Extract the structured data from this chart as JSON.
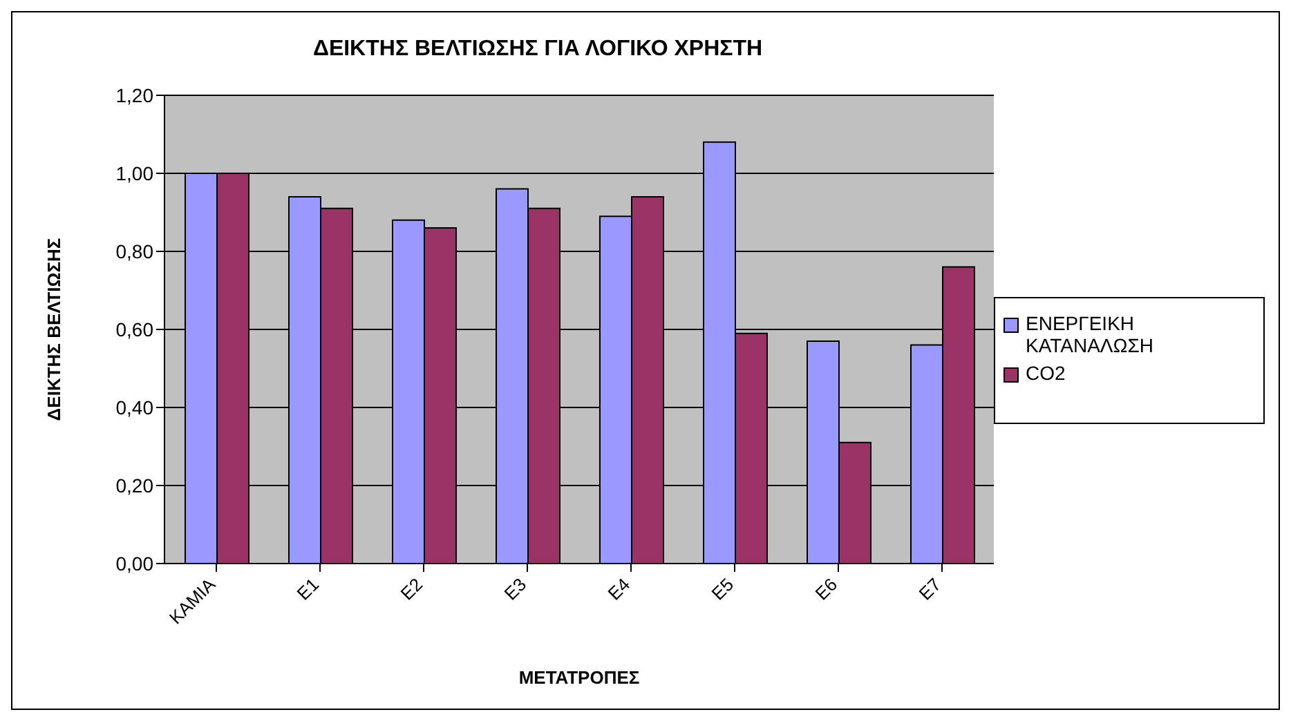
{
  "chart_data": {
    "type": "bar",
    "title": "ΔΕΙΚΤΗΣ ΒΕΛΤΙΩΣΗΣ ΓΙΑ ΛΟΓΙΚΟ ΧΡΗΣΤΗ",
    "xlabel": "ΜΕΤΑΤΡΟΠΕΣ",
    "ylabel": "ΔΕΙΚΤΗΣ ΒΕΛΤΙΩΣΗΣ",
    "categories": [
      "ΚΑΜΙΑ",
      "Ε1",
      "Ε2",
      "Ε3",
      "Ε4",
      "Ε5",
      "Ε6",
      "Ε7"
    ],
    "series": [
      {
        "name": "ΕΝΕΡΓΕΙΚΗ ΚΑΤΑΝΑΛΩΣΗ",
        "color": "#9999ff",
        "values": [
          1.0,
          0.94,
          0.88,
          0.96,
          0.89,
          1.08,
          0.57,
          0.56
        ]
      },
      {
        "name": "CO2",
        "color": "#993366",
        "values": [
          1.0,
          0.91,
          0.86,
          0.91,
          0.94,
          0.59,
          0.31,
          0.76
        ]
      }
    ],
    "ylim": [
      0,
      1.2
    ],
    "yticks": [
      {
        "value": 0,
        "label": "0,00"
      },
      {
        "value": 0.2,
        "label": "0,20"
      },
      {
        "value": 0.4,
        "label": "0,40"
      },
      {
        "value": 0.6,
        "label": "0,60"
      },
      {
        "value": 0.8,
        "label": "0,80"
      },
      {
        "value": 1,
        "label": "1,00"
      },
      {
        "value": 1.2,
        "label": "1,20"
      }
    ],
    "grid": "y",
    "legend": "right"
  }
}
